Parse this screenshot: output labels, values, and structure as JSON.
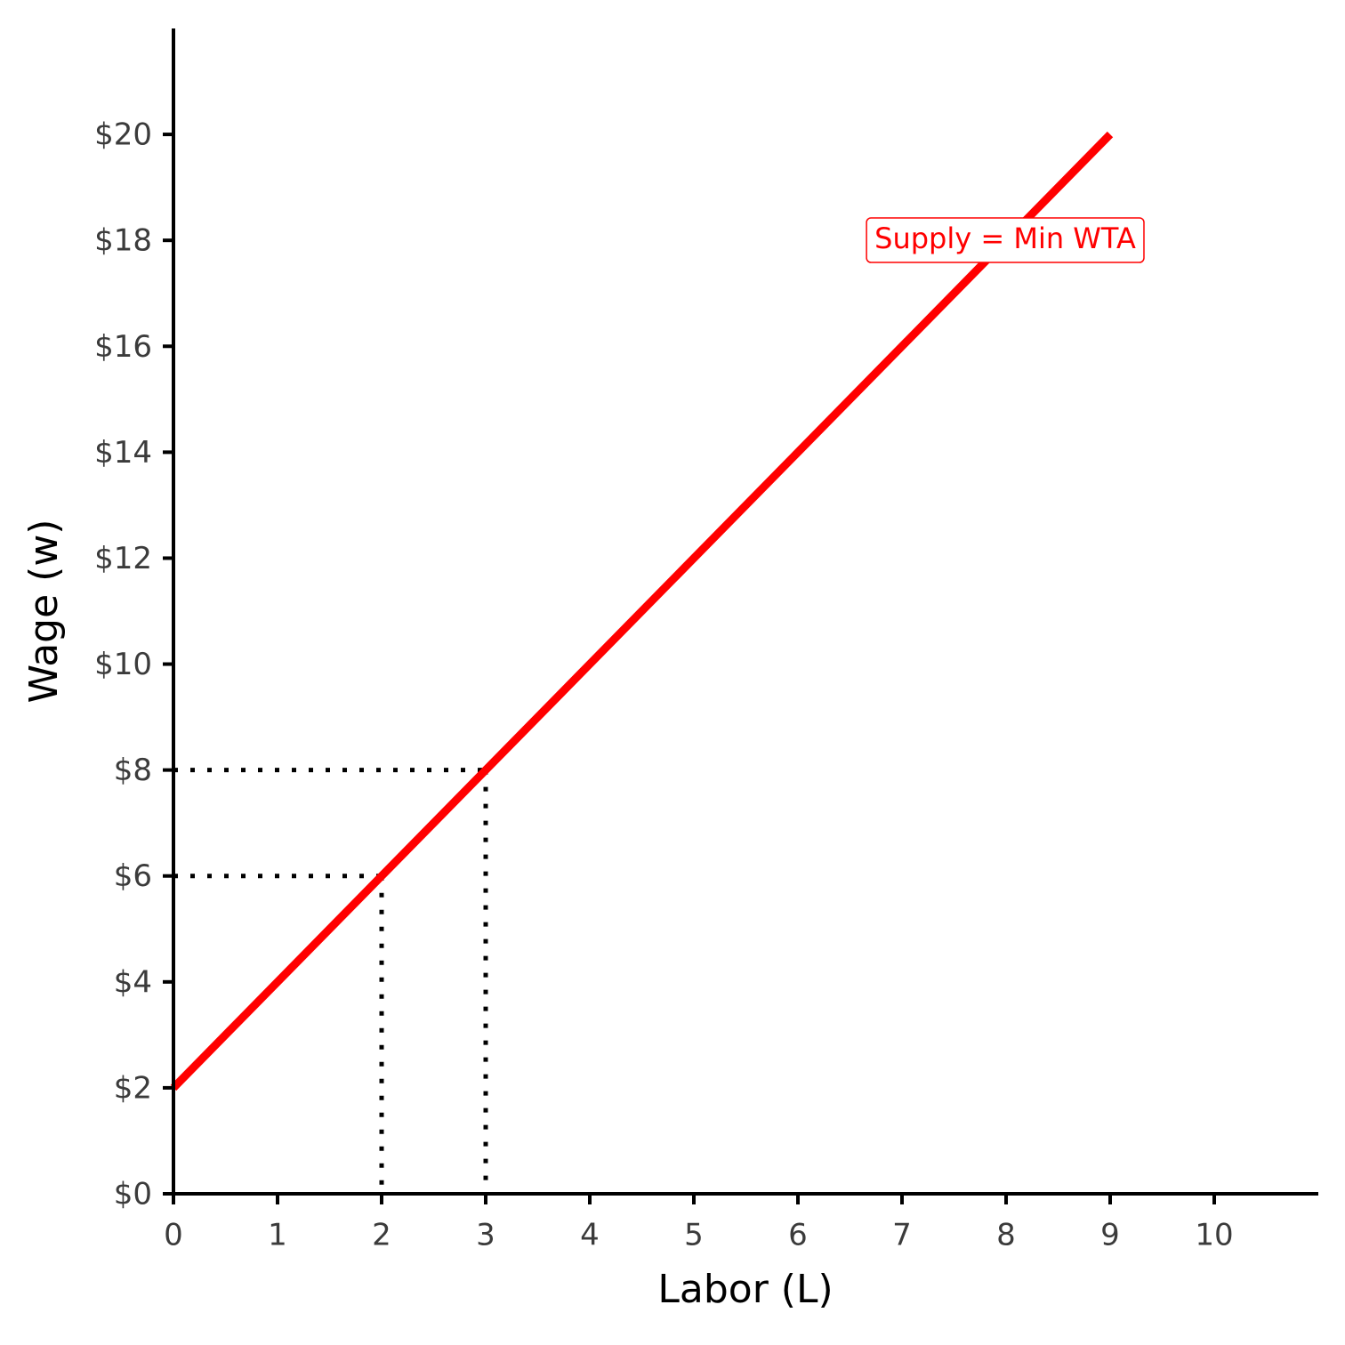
{
  "chart_data": {
    "type": "line",
    "x": [
      0,
      9
    ],
    "series": [
      {
        "name": "Supply = Min WTA",
        "color": "#ff0000",
        "values": [
          2,
          20
        ]
      }
    ],
    "guides": [
      {
        "x": 2,
        "y": 6
      },
      {
        "x": 3,
        "y": 8
      }
    ],
    "xlabel": "Labor (L)",
    "ylabel": "Wage (w)",
    "xlim": [
      0,
      11
    ],
    "ylim": [
      0,
      22
    ],
    "xticks": [
      0,
      1,
      2,
      3,
      4,
      5,
      6,
      7,
      8,
      9,
      10
    ],
    "yticks": [
      {
        "value": 0,
        "label": "$0"
      },
      {
        "value": 2,
        "label": "$2"
      },
      {
        "value": 4,
        "label": "$4"
      },
      {
        "value": 6,
        "label": "$6"
      },
      {
        "value": 8,
        "label": "$8"
      },
      {
        "value": 10,
        "label": "$10"
      },
      {
        "value": 12,
        "label": "$12"
      },
      {
        "value": 14,
        "label": "$14"
      },
      {
        "value": 16,
        "label": "$16"
      },
      {
        "value": 18,
        "label": "$18"
      },
      {
        "value": 20,
        "label": "$20"
      }
    ],
    "grid": false
  }
}
